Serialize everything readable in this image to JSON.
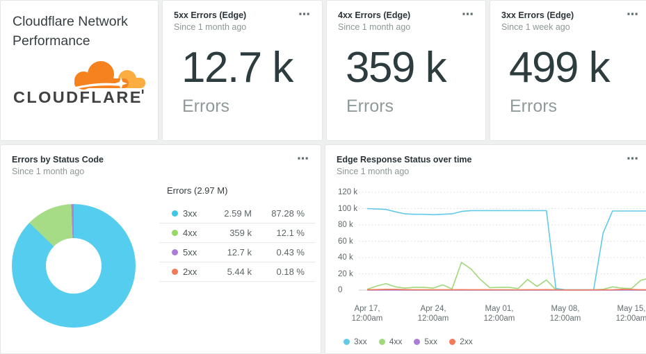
{
  "ui": {
    "menu_icon": "⋯"
  },
  "title_card": {
    "title": "Cloudflare Network Performance",
    "logo_wordmark": "CLOUDFLARE",
    "logo_orange": "#f6821f",
    "logo_light_orange": "#fbad41",
    "logo_text_color": "#404242"
  },
  "billboards": [
    {
      "title": "5xx Errors (Edge)",
      "subtitle": "Since 1 month ago",
      "value": "12.7 k",
      "unit": "Errors"
    },
    {
      "title": "4xx Errors (Edge)",
      "subtitle": "Since 1 month ago",
      "value": "359 k",
      "unit": "Errors"
    },
    {
      "title": "3xx Errors (Edge)",
      "subtitle": "Since 1 week ago",
      "value": "499 k",
      "unit": "Errors"
    }
  ],
  "pie_card": {
    "title": "Errors by Status Code",
    "subtitle": "Since 1 month ago",
    "table_header": "Errors (2.97 M)",
    "rows": [
      {
        "label": "3xx",
        "value": "2.59 M",
        "percent": "87.28 %",
        "color": "#3ec6e6"
      },
      {
        "label": "4xx",
        "value": "359 k",
        "percent": "12.1 %",
        "color": "#95d863"
      },
      {
        "label": "5xx",
        "value": "12.7 k",
        "percent": "0.43 %",
        "color": "#ab7dd6"
      },
      {
        "label": "2xx",
        "value": "5.44 k",
        "percent": "0.18 %",
        "color": "#f37a59"
      }
    ]
  },
  "line_card": {
    "title": "Edge Response Status over time",
    "subtitle": "Since 1 month ago"
  },
  "chart_data": [
    {
      "type": "pie",
      "title": "Errors by Status Code",
      "donut": true,
      "total_label": "Errors (2.97 M)",
      "slices": [
        {
          "label": "3xx",
          "display": "2.59 M",
          "value": 2590000,
          "pct": 87.28,
          "color": "#55cdee"
        },
        {
          "label": "4xx",
          "display": "359 k",
          "value": 359000,
          "pct": 12.1,
          "color": "#a6dc85"
        },
        {
          "label": "5xx",
          "display": "12.7 k",
          "value": 12700,
          "pct": 0.43,
          "color": "#b481d3"
        },
        {
          "label": "2xx",
          "display": "5.44 k",
          "value": 5440,
          "pct": 0.18,
          "color": "#f1795f"
        }
      ]
    },
    {
      "type": "line",
      "title": "Edge Response Status over time",
      "x_description": "daily points from Apr 17 12:00am to May 17",
      "ylim": [
        0,
        120000
      ],
      "grid": "horizontal-dotted",
      "legend_position": "bottom-left",
      "y_tick_labels_top_to_bottom": [
        "120 k",
        "100 k",
        "80 k",
        "60 k",
        "40 k",
        "20 k",
        "0"
      ],
      "x_tick_labels": [
        {
          "l1": "Apr 17,",
          "l2": "12:00am"
        },
        {
          "l1": "Apr 24,",
          "l2": "12:00am"
        },
        {
          "l1": "May 01,",
          "l2": "12:00am"
        },
        {
          "l1": "May 08,",
          "l2": "12:00am"
        },
        {
          "l1": "May 15,",
          "l2": "12:00am"
        }
      ],
      "series": [
        {
          "name": "3xx",
          "color": "#62c9e9",
          "values_k": [
            100,
            99.5,
            99,
            96,
            93.5,
            93,
            93,
            92.5,
            93,
            93.5,
            96.5,
            97.5,
            97.5,
            97.5,
            97.5,
            97.5,
            97.5,
            97.5,
            97.5,
            97.5,
            2,
            0.5,
            0.5,
            0.5,
            0.5,
            70,
            97,
            97,
            97,
            97,
            97
          ]
        },
        {
          "name": "4xx",
          "color": "#a0d87b",
          "values_k": [
            1,
            5,
            8,
            4,
            2.5,
            3.5,
            3.5,
            2.5,
            6.5,
            1.5,
            34,
            26,
            13,
            3,
            3.5,
            3.5,
            2,
            13,
            4.5,
            12.5,
            0.3,
            0.2,
            0.2,
            0.2,
            0.3,
            1,
            4,
            2.5,
            2,
            12,
            15
          ]
        },
        {
          "name": "5xx",
          "color": "#ab7dd6",
          "values_k": [
            0.08,
            0.08,
            0.08,
            0.08,
            0.08,
            0.08,
            0.08,
            0.08,
            0.08,
            0.08,
            0.08,
            0.08,
            0.08,
            0.08,
            0.08,
            0.08,
            0.08,
            0.08,
            0.08,
            0.08,
            0.08,
            0.08,
            0.08,
            0.08,
            0.08,
            0.08,
            0.08,
            0.08,
            0.08,
            0.08,
            0.08
          ]
        },
        {
          "name": "2xx",
          "color": "#f37a59",
          "values_k": [
            0.5,
            0.7,
            1,
            1,
            0.7,
            0.5,
            0.5,
            0.5,
            0.5,
            0.5,
            0.6,
            0.5,
            0.5,
            0.5,
            0.4,
            0.4,
            0.4,
            0.5,
            0.5,
            0.6,
            0.3,
            0.25,
            0.25,
            0.25,
            0.3,
            0.4,
            0.5,
            1,
            0.8,
            0.5,
            0.5
          ]
        }
      ]
    }
  ]
}
